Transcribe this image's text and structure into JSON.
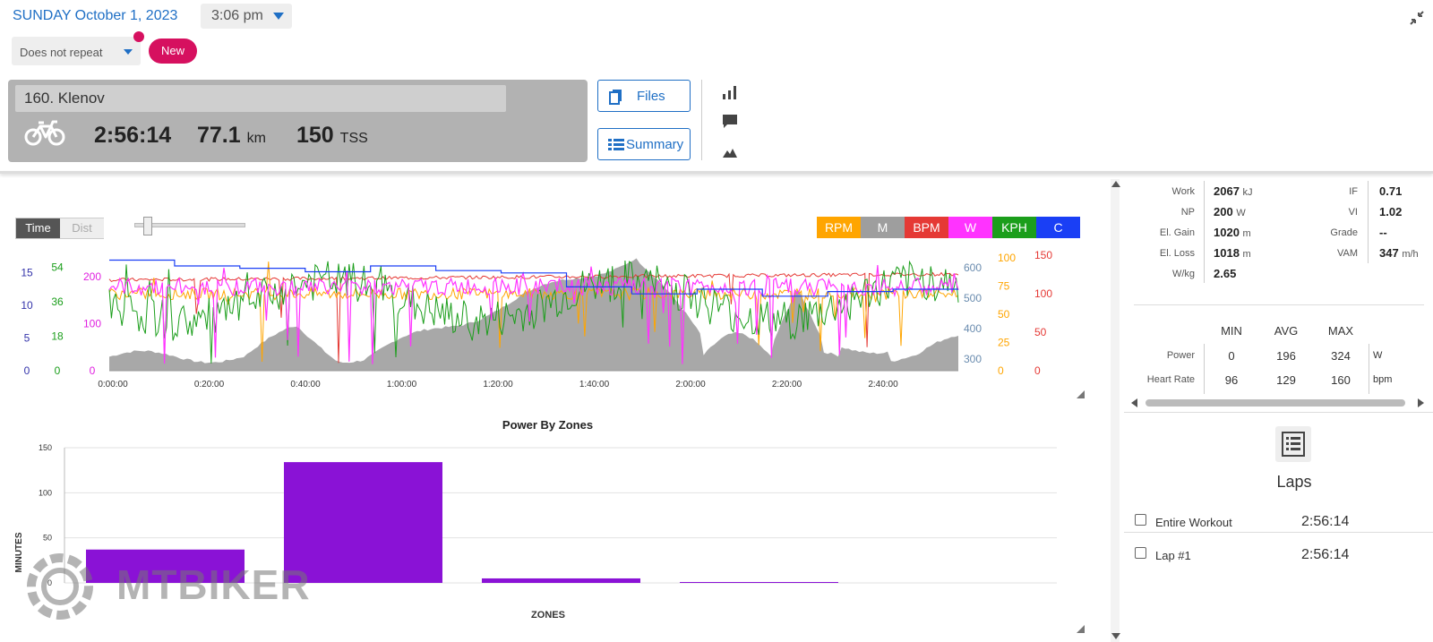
{
  "header": {
    "date": "SUNDAY October 1, 2023",
    "time": "3:06 pm",
    "repeat": "Does not repeat",
    "new_label": "New"
  },
  "workout": {
    "title": "160. Klenov",
    "duration": "2:56:14",
    "distance": "77.1",
    "distance_unit": "km",
    "tss": "150",
    "tss_unit": "TSS",
    "files_label": "Files",
    "summary_label": "Summary"
  },
  "chart_controls": {
    "time_label": "Time",
    "dist_label": "Dist",
    "legend": [
      {
        "label": "RPM",
        "color": "#ffa500"
      },
      {
        "label": "M",
        "color": "#9e9e9e"
      },
      {
        "label": "BPM",
        "color": "#e53935"
      },
      {
        "label": "W",
        "color": "#ff33ff"
      },
      {
        "label": "KPH",
        "color": "#1b9e1b"
      },
      {
        "label": "C",
        "color": "#1a3ff5"
      }
    ]
  },
  "chart_data": [
    {
      "type": "line",
      "x_ticks": [
        "0:00:00",
        "0:20:00",
        "0:40:00",
        "1:00:00",
        "1:20:00",
        "1:40:00",
        "2:00:00",
        "2:20:00",
        "2:40:00"
      ],
      "axes": {
        "temp_c": {
          "ticks": [
            "0",
            "5",
            "10",
            "15"
          ],
          "color": "#3333aa"
        },
        "speed_kph": {
          "ticks": [
            "0",
            "18",
            "36",
            "54"
          ],
          "color": "#1b9e1b"
        },
        "power_w": {
          "ticks": [
            "0",
            "100",
            "200"
          ],
          "color": "#e020e0"
        },
        "elevation_m": {
          "ticks": [
            "300",
            "400",
            "500",
            "600"
          ],
          "color": "#6a8caf"
        },
        "cadence_rpm": {
          "ticks": [
            "0",
            "25",
            "50",
            "75",
            "100"
          ],
          "color": "#ffa500"
        },
        "hr_bpm": {
          "ticks": [
            "0",
            "50",
            "100",
            "150"
          ],
          "color": "#e53935"
        }
      },
      "series": [
        {
          "name": "M",
          "color": "#9e9e9e",
          "type": "area"
        },
        {
          "name": "BPM",
          "color": "#e53935"
        },
        {
          "name": "RPM",
          "color": "#ffa500"
        },
        {
          "name": "W",
          "color": "#ff33ff"
        },
        {
          "name": "KPH",
          "color": "#1b9e1b"
        },
        {
          "name": "C",
          "color": "#1a3ff5"
        }
      ]
    },
    {
      "type": "bar",
      "title": "Power By Zones",
      "xlabel": "ZONES",
      "ylabel": "MINUTES",
      "ylim": [
        0,
        150
      ],
      "y_ticks": [
        "0",
        "50",
        "100",
        "150"
      ],
      "values": [
        37,
        134,
        5,
        1
      ],
      "color": "#8a12d6"
    }
  ],
  "stats": {
    "rows_left": [
      {
        "label": "Work",
        "value": "2067",
        "unit": "kJ"
      },
      {
        "label": "NP",
        "value": "200",
        "unit": "W"
      },
      {
        "label": "El. Gain",
        "value": "1020",
        "unit": "m"
      },
      {
        "label": "El. Loss",
        "value": "1018",
        "unit": "m"
      },
      {
        "label": "W/kg",
        "value": "2.65",
        "unit": ""
      }
    ],
    "rows_right": [
      {
        "label": "IF",
        "value": "0.71",
        "unit": ""
      },
      {
        "label": "VI",
        "value": "1.02",
        "unit": ""
      },
      {
        "label": "Grade",
        "value": "--",
        "unit": ""
      },
      {
        "label": "VAM",
        "value": "347",
        "unit": "m/h"
      }
    ],
    "table_headers": [
      "MIN",
      "AVG",
      "MAX"
    ],
    "table_rows": [
      {
        "label": "Power",
        "min": "0",
        "avg": "196",
        "max": "324",
        "unit": "W"
      },
      {
        "label": "Heart Rate",
        "min": "96",
        "avg": "129",
        "max": "160",
        "unit": "bpm"
      }
    ]
  },
  "laps": {
    "title": "Laps",
    "items": [
      {
        "name": "Entire Workout",
        "time": "2:56:14"
      },
      {
        "name": "Lap #1",
        "time": "2:56:14"
      }
    ]
  },
  "watermark": "MTBIKER"
}
